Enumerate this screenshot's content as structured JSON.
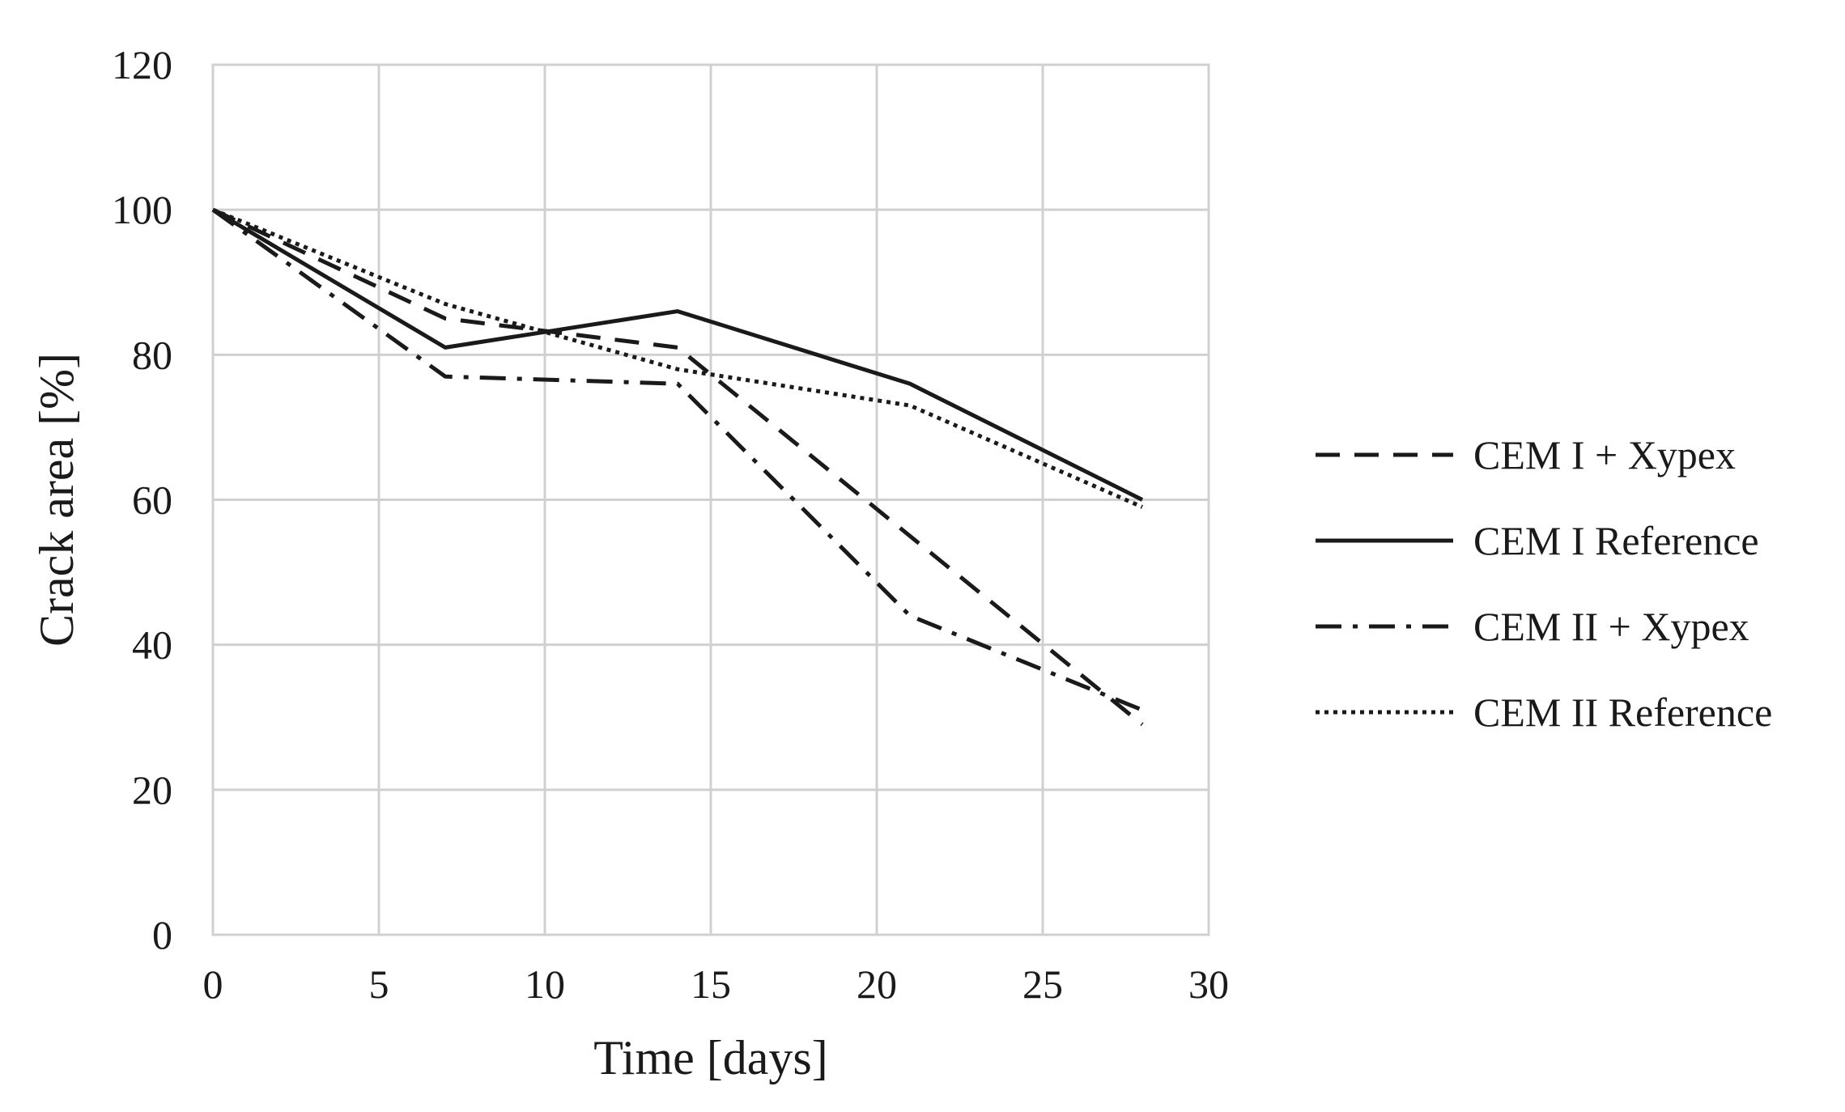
{
  "chart_data": {
    "type": "line",
    "title": "",
    "xlabel": "Time [days]",
    "ylabel": "Crack area [%]",
    "xlim": [
      0,
      30
    ],
    "ylim": [
      0,
      120
    ],
    "xticks": [
      0,
      5,
      10,
      15,
      20,
      25,
      30
    ],
    "yticks": [
      0,
      20,
      40,
      60,
      80,
      100,
      120
    ],
    "grid": true,
    "legend_position": "right",
    "series": [
      {
        "name": "CEM I + Xypex",
        "style": "dashed",
        "color": "#1a1a1a",
        "x": [
          0,
          7,
          14,
          21,
          28
        ],
        "y": [
          100,
          85,
          81,
          55,
          29
        ]
      },
      {
        "name": "CEM I Reference",
        "style": "solid",
        "color": "#1a1a1a",
        "x": [
          0,
          7,
          14,
          21,
          28
        ],
        "y": [
          100,
          81,
          86,
          76,
          60
        ]
      },
      {
        "name": "CEM II + Xypex",
        "style": "dashdot",
        "color": "#1a1a1a",
        "x": [
          0,
          7,
          14,
          21,
          28
        ],
        "y": [
          100,
          77,
          76,
          44,
          31
        ]
      },
      {
        "name": "CEM II Reference",
        "style": "dotted",
        "color": "#1a1a1a",
        "x": [
          0,
          7,
          14,
          21,
          28
        ],
        "y": [
          100,
          87,
          78,
          73,
          59
        ]
      }
    ]
  }
}
